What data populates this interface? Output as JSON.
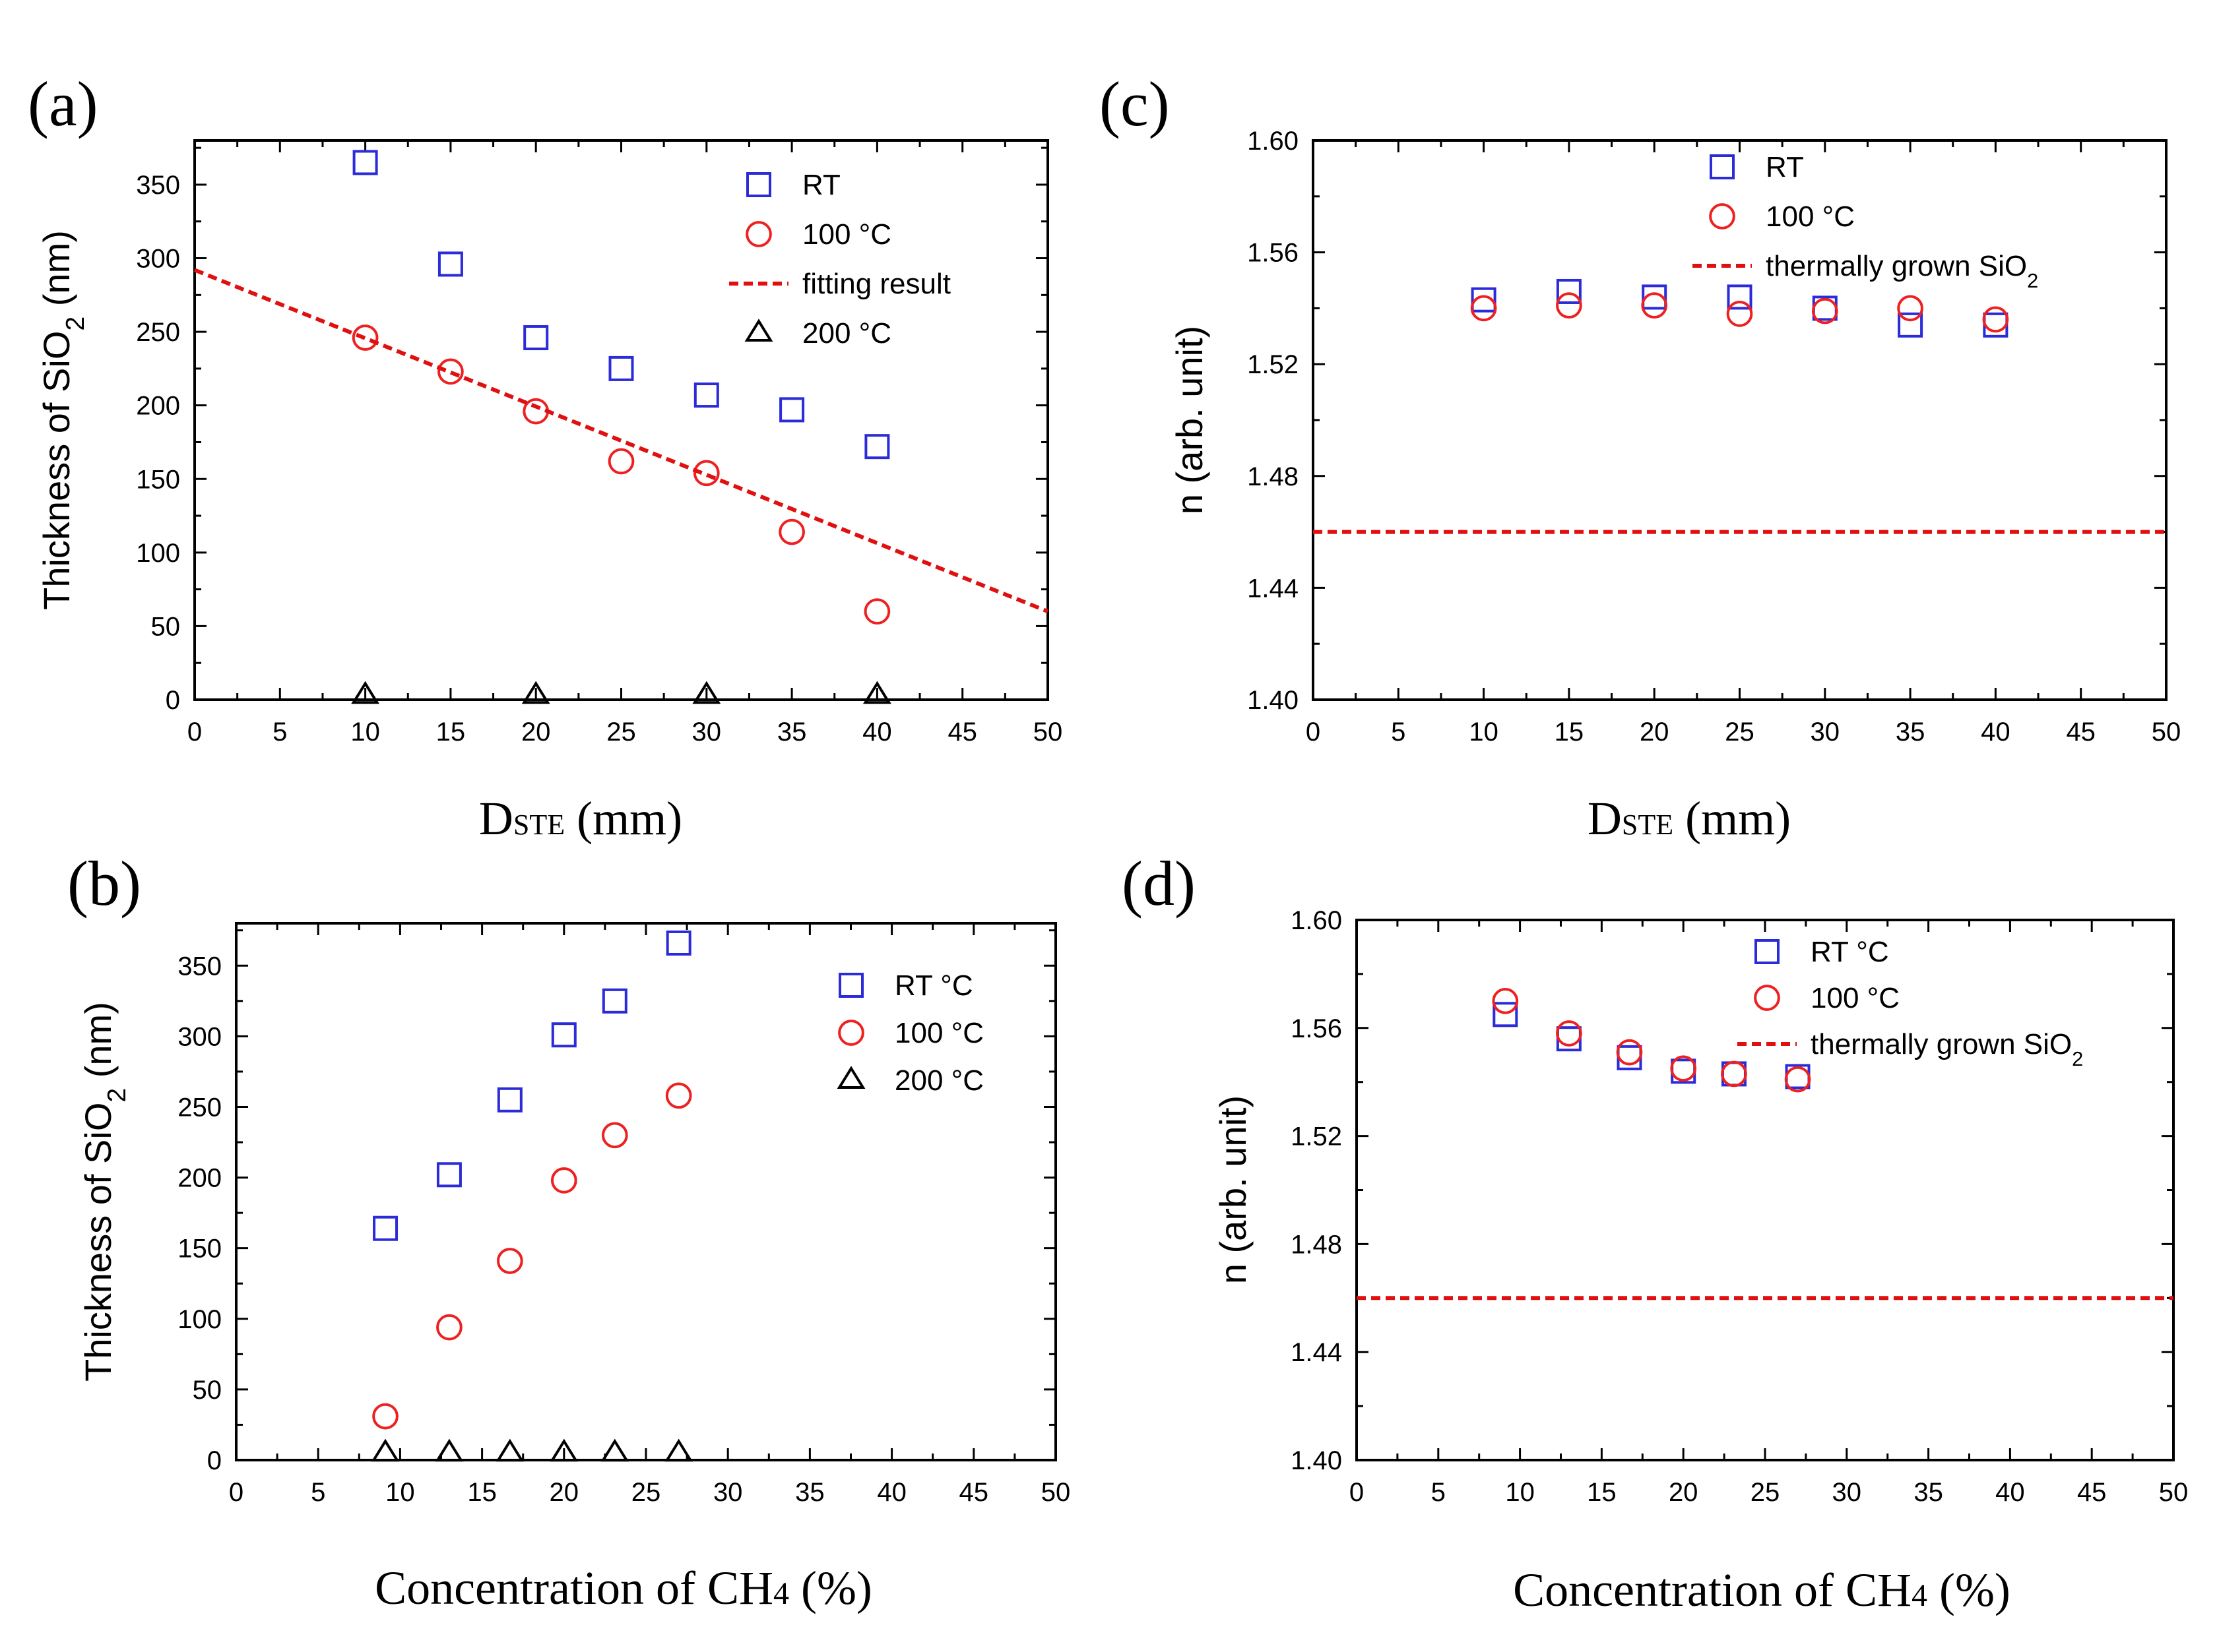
{
  "colors": {
    "rt": "#2b2bd9",
    "c100": "#ee2020",
    "c200": "#000000",
    "ref": "#e01010",
    "axis": "#000000"
  },
  "chart_data": [
    {
      "id": "a",
      "panel_label": "(a)",
      "type": "scatter",
      "xlabel_main": "D",
      "xlabel_sub": "STE",
      "xlabel_rest": " (mm)",
      "ylabel": "Thickness of SiO",
      "ylabel_sub": "2",
      "ylabel_rest": " (nm)",
      "xlim": [
        0,
        50
      ],
      "ylim": [
        0,
        380
      ],
      "xticks": [
        0,
        5,
        10,
        15,
        20,
        25,
        30,
        35,
        40,
        45,
        50
      ],
      "yticks": [
        0,
        50,
        100,
        150,
        200,
        250,
        300,
        350
      ],
      "series": [
        {
          "name": "RT",
          "marker": "square",
          "color": "#2b2bd9",
          "x": [
            10,
            15,
            20,
            25,
            30,
            35,
            40
          ],
          "y": [
            365,
            296,
            246,
            225,
            207,
            197,
            172
          ]
        },
        {
          "name": "100 °C",
          "marker": "circle",
          "color": "#ee2020",
          "x": [
            10,
            15,
            20,
            25,
            30,
            35,
            40
          ],
          "y": [
            246,
            223,
            196,
            162,
            154,
            114,
            60
          ]
        },
        {
          "name": "fitting result",
          "marker": "dash",
          "color": "#e01010",
          "line": [
            [
              0,
              292
            ],
            [
              50,
              60
            ]
          ]
        },
        {
          "name": "200 °C",
          "marker": "triangle",
          "color": "#000000",
          "x": [
            10,
            20,
            30,
            40
          ],
          "y": [
            3,
            3,
            3,
            3
          ]
        }
      ],
      "legend": [
        {
          "label": "RT",
          "sub": "",
          "marker": "square",
          "color": "#2b2bd9"
        },
        {
          "label": "100 °C",
          "sub": "",
          "marker": "circle",
          "color": "#ee2020"
        },
        {
          "label": "fitting result",
          "sub": "",
          "marker": "dash",
          "color": "#e01010"
        },
        {
          "label": "200 °C",
          "sub": "",
          "marker": "triangle",
          "color": "#000000"
        }
      ]
    },
    {
      "id": "b",
      "panel_label": "(b)",
      "type": "scatter",
      "xlabel_main": "Concentration of CH",
      "xlabel_sub": "4",
      "xlabel_rest": " (%)",
      "ylabel": "Thickness of SiO",
      "ylabel_sub": "2",
      "ylabel_rest": " (nm)",
      "xlim": [
        0,
        50
      ],
      "ylim": [
        0,
        380
      ],
      "xticks": [
        0,
        5,
        10,
        15,
        20,
        25,
        30,
        35,
        40,
        45,
        50
      ],
      "yticks": [
        0,
        50,
        100,
        150,
        200,
        250,
        300,
        350
      ],
      "series": [
        {
          "name": "RT °C",
          "marker": "square",
          "color": "#2b2bd9",
          "x": [
            9.1,
            13.0,
            16.7,
            20.0,
            23.1,
            27.0
          ],
          "y": [
            164,
            202,
            255,
            301,
            325,
            366
          ]
        },
        {
          "name": "100 °C",
          "marker": "circle",
          "color": "#ee2020",
          "x": [
            9.1,
            13.0,
            16.7,
            20.0,
            23.1,
            27.0
          ],
          "y": [
            31,
            94,
            141,
            198,
            230,
            258
          ]
        },
        {
          "name": "200 °C",
          "marker": "triangle",
          "color": "#000000",
          "x": [
            9.1,
            13.0,
            16.7,
            20.0,
            23.1,
            27.0
          ],
          "y": [
            5,
            5,
            5,
            5,
            5,
            5
          ]
        }
      ],
      "legend": [
        {
          "label": "RT °C",
          "sub": "",
          "marker": "square",
          "color": "#2b2bd9"
        },
        {
          "label": "100 °C",
          "sub": "",
          "marker": "circle",
          "color": "#ee2020"
        },
        {
          "label": "200 °C",
          "sub": "",
          "marker": "triangle",
          "color": "#000000"
        }
      ]
    },
    {
      "id": "c",
      "panel_label": "(c)",
      "type": "scatter",
      "xlabel_main": "D",
      "xlabel_sub": "STE",
      "xlabel_rest": " (mm)",
      "ylabel": "n (arb. unit)",
      "ylabel_sub": "",
      "ylabel_rest": "",
      "xlim": [
        0,
        50
      ],
      "ylim": [
        1.4,
        1.6
      ],
      "xticks": [
        0,
        5,
        10,
        15,
        20,
        25,
        30,
        35,
        40,
        45,
        50
      ],
      "yticks": [
        1.4,
        1.44,
        1.48,
        1.52,
        1.56,
        1.6
      ],
      "series": [
        {
          "name": "RT",
          "marker": "square",
          "color": "#2b2bd9",
          "x": [
            10,
            15,
            20,
            25,
            30,
            35,
            40
          ],
          "y": [
            1.543,
            1.546,
            1.544,
            1.544,
            1.54,
            1.534,
            1.534
          ]
        },
        {
          "name": "100 °C",
          "marker": "circle",
          "color": "#ee2020",
          "x": [
            10,
            15,
            20,
            25,
            30,
            35,
            40
          ],
          "y": [
            1.54,
            1.541,
            1.541,
            1.538,
            1.539,
            1.54,
            1.536
          ]
        },
        {
          "name": "thermally grown SiO2",
          "marker": "dash",
          "color": "#e01010",
          "line": [
            [
              0,
              1.46
            ],
            [
              50,
              1.46
            ]
          ]
        }
      ],
      "legend": [
        {
          "label": "RT",
          "sub": "",
          "marker": "square",
          "color": "#2b2bd9"
        },
        {
          "label": "100 °C",
          "sub": "",
          "marker": "circle",
          "color": "#ee2020"
        },
        {
          "label": "thermally grown SiO",
          "sub": "2",
          "marker": "dash",
          "color": "#e01010"
        }
      ]
    },
    {
      "id": "d",
      "panel_label": "(d)",
      "type": "scatter",
      "xlabel_main": "Concentration of CH",
      "xlabel_sub": "4",
      "xlabel_rest": " (%)",
      "ylabel": "n (arb. unit)",
      "ylabel_sub": "",
      "ylabel_rest": "",
      "xlim": [
        0,
        50
      ],
      "ylim": [
        1.4,
        1.6
      ],
      "xticks": [
        0,
        5,
        10,
        15,
        20,
        25,
        30,
        35,
        40,
        45,
        50
      ],
      "yticks": [
        1.4,
        1.44,
        1.48,
        1.52,
        1.56,
        1.6
      ],
      "series": [
        {
          "name": "RT °C",
          "marker": "square",
          "color": "#2b2bd9",
          "x": [
            9.1,
            13.0,
            16.7,
            20.0,
            23.1,
            27.0
          ],
          "y": [
            1.565,
            1.556,
            1.549,
            1.544,
            1.543,
            1.542
          ]
        },
        {
          "name": "100 °C",
          "marker": "circle",
          "color": "#ee2020",
          "x": [
            9.1,
            13.0,
            16.7,
            20.0,
            23.1,
            27.0
          ],
          "y": [
            1.57,
            1.558,
            1.551,
            1.545,
            1.543,
            1.541
          ]
        },
        {
          "name": "thermally grown SiO2",
          "marker": "dash",
          "color": "#e01010",
          "line": [
            [
              0,
              1.46
            ],
            [
              50,
              1.46
            ]
          ]
        }
      ],
      "legend": [
        {
          "label": "RT °C",
          "sub": "",
          "marker": "square",
          "color": "#2b2bd9"
        },
        {
          "label": "100 °C",
          "sub": "",
          "marker": "circle",
          "color": "#ee2020"
        },
        {
          "label": "thermally grown SiO",
          "sub": "2",
          "marker": "dash",
          "color": "#e01010"
        }
      ]
    }
  ]
}
